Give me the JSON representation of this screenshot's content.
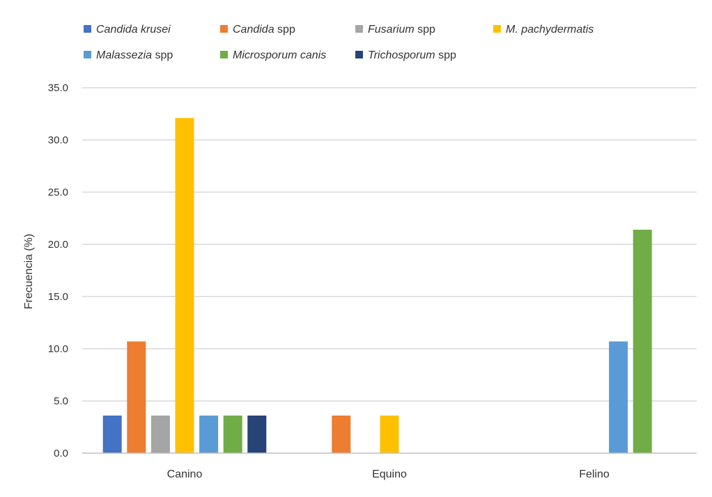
{
  "chart_data": {
    "type": "bar",
    "categories": [
      "Canino",
      "Equino",
      "Felino"
    ],
    "ylabel": "Frecuencia (%)",
    "ylim": [
      0,
      35
    ],
    "yticks": [
      "0.0",
      "5.0",
      "10.0",
      "15.0",
      "20.0",
      "25.0",
      "30.0",
      "35.0"
    ],
    "grid": true,
    "legend_position": "top",
    "series": [
      {
        "name_italic": "Candida krusei",
        "name_suffix": "",
        "color": "#4472C4",
        "values": [
          3.6,
          null,
          null
        ]
      },
      {
        "name_italic": "Candida",
        "name_suffix": "spp",
        "color": "#ED7D31",
        "values": [
          10.7,
          3.6,
          null
        ]
      },
      {
        "name_italic": "Fusarium",
        "name_suffix": "spp",
        "color": "#A5A5A5",
        "values": [
          3.6,
          null,
          null
        ]
      },
      {
        "name_italic": "M. pachydermatis",
        "name_suffix": "",
        "color": "#FFC000",
        "values": [
          32.1,
          3.6,
          null
        ]
      },
      {
        "name_italic": "Malassezia",
        "name_suffix": "spp",
        "color": "#5B9BD5",
        "values": [
          3.6,
          null,
          10.7
        ]
      },
      {
        "name_italic": "Microsporum canis",
        "name_suffix": "",
        "color": "#70AD47",
        "values": [
          3.6,
          null,
          21.4
        ]
      },
      {
        "name_italic": "Trichosporum",
        "name_suffix": "spp",
        "color": "#264478",
        "values": [
          3.6,
          null,
          null
        ]
      }
    ]
  }
}
